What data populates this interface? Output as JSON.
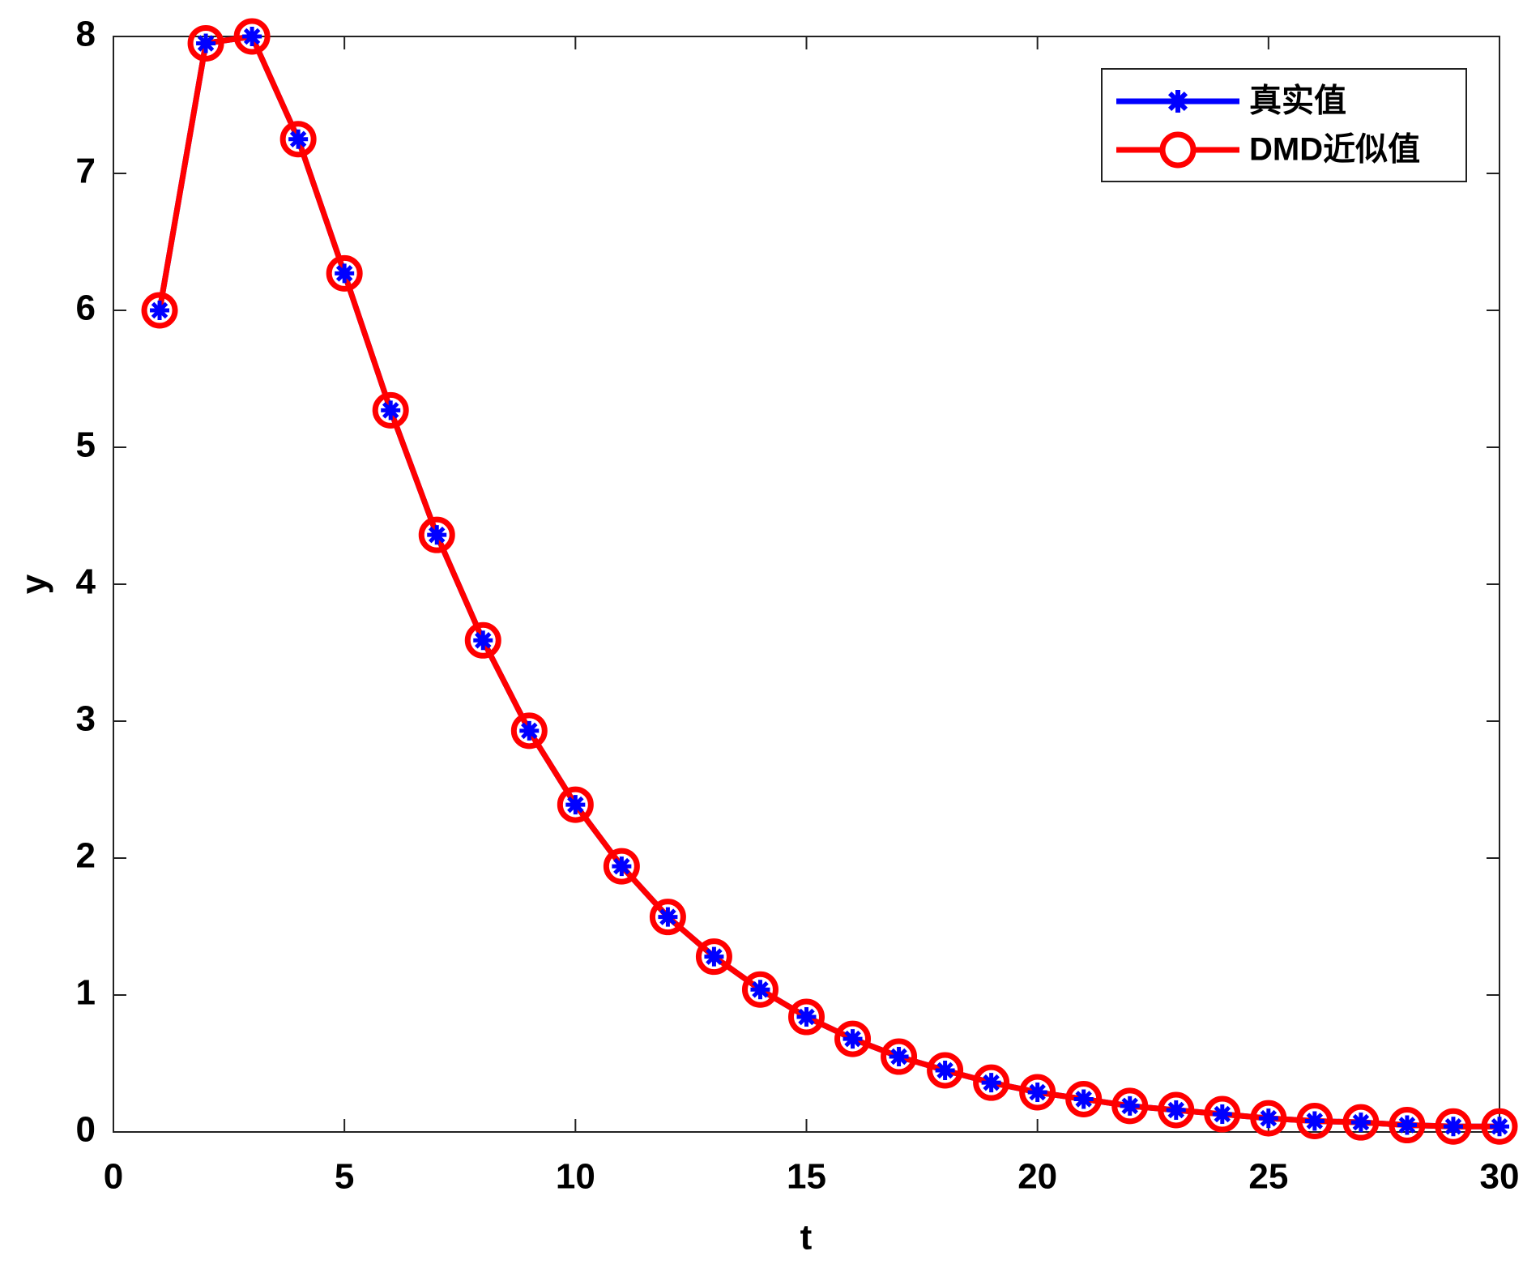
{
  "chart_data": {
    "type": "line",
    "xlabel": "t",
    "ylabel": "y",
    "x": [
      1,
      2,
      3,
      4,
      5,
      6,
      7,
      8,
      9,
      10,
      11,
      12,
      13,
      14,
      15,
      16,
      17,
      18,
      19,
      20,
      21,
      22,
      23,
      24,
      25,
      26,
      27,
      28,
      29,
      30
    ],
    "series": [
      {
        "name": "真实值",
        "color": "#0000ff",
        "marker": "asterisk",
        "values": [
          6.0,
          7.95,
          8.0,
          7.25,
          6.27,
          5.27,
          4.36,
          3.59,
          2.93,
          2.39,
          1.94,
          1.57,
          1.28,
          1.04,
          0.84,
          0.68,
          0.55,
          0.45,
          0.36,
          0.29,
          0.24,
          0.19,
          0.16,
          0.13,
          0.1,
          0.08,
          0.07,
          0.05,
          0.04,
          0.04
        ]
      },
      {
        "name": "DMD近似值",
        "color": "#ff0000",
        "marker": "circle",
        "values": [
          6.0,
          7.95,
          8.0,
          7.25,
          6.27,
          5.27,
          4.36,
          3.59,
          2.93,
          2.39,
          1.94,
          1.57,
          1.28,
          1.04,
          0.84,
          0.68,
          0.55,
          0.45,
          0.36,
          0.29,
          0.24,
          0.19,
          0.16,
          0.13,
          0.1,
          0.08,
          0.07,
          0.05,
          0.04,
          0.04
        ]
      }
    ],
    "xlim": [
      0,
      30
    ],
    "xticks": [
      0,
      5,
      10,
      15,
      20,
      25,
      30
    ],
    "ylim": [
      0,
      8
    ],
    "yticks": [
      0,
      1,
      2,
      3,
      4,
      5,
      6,
      7,
      8
    ],
    "grid": false,
    "legend": "upper right"
  }
}
